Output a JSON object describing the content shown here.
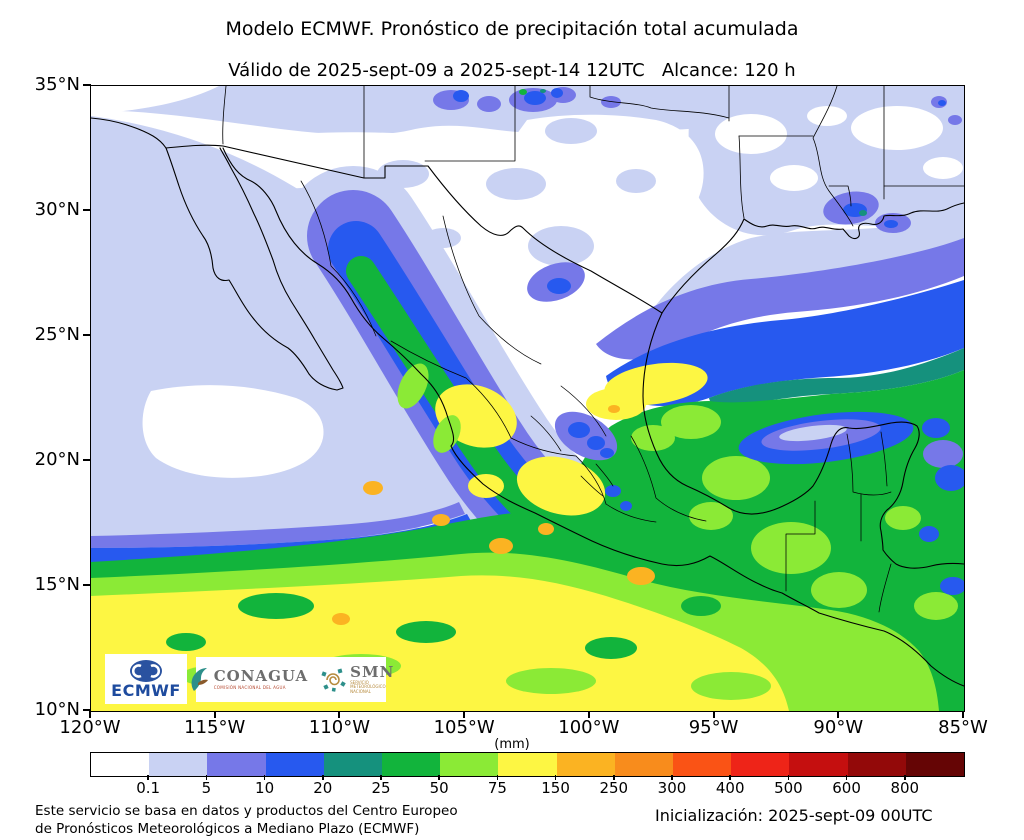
{
  "header": {
    "title": "Modelo ECMWF. Pronóstico de precipitación total acumulada",
    "subtitle": "Válido de 2025-sept-09 a 2025-sept-14 12UTC   Alcance: 120 h"
  },
  "map": {
    "lat_labels": [
      "35°N",
      "30°N",
      "25°N",
      "20°N",
      "15°N",
      "10°N"
    ],
    "lon_labels": [
      "120°W",
      "115°W",
      "110°W",
      "105°W",
      "100°W",
      "95°W",
      "90°W",
      "85°W"
    ]
  },
  "colorbar": {
    "unit": "(mm)",
    "ticks": [
      "0.1",
      "5",
      "10",
      "20",
      "25",
      "50",
      "75",
      "150",
      "250",
      "300",
      "400",
      "500",
      "600",
      "800"
    ],
    "colors": [
      "#ffffff",
      "#c9d2f3",
      "#7678e8",
      "#2759ef",
      "#15917d",
      "#12b43c",
      "#8bea36",
      "#fdf643",
      "#fbb322",
      "#f88c1c",
      "#fa5315",
      "#ee2418",
      "#c50f0f",
      "#930909",
      "#650505"
    ]
  },
  "logos": {
    "ecmwf_label": "ECMWF",
    "conagua_label": "CONAGUA",
    "conagua_sub": "COMISIÓN NACIONAL DEL AGUA",
    "smn_label": "SMN",
    "smn_sub": "SERVICIO METEOROLÓGICO NACIONAL"
  },
  "footer": {
    "left_line1": "Este servicio se basa en datos y productos del Centro Europeo",
    "left_line2": "de Pronósticos Meteorológicos a Mediano Plazo (ECMWF)",
    "right": "Inicialización: 2025-sept-09 00UTC"
  }
}
